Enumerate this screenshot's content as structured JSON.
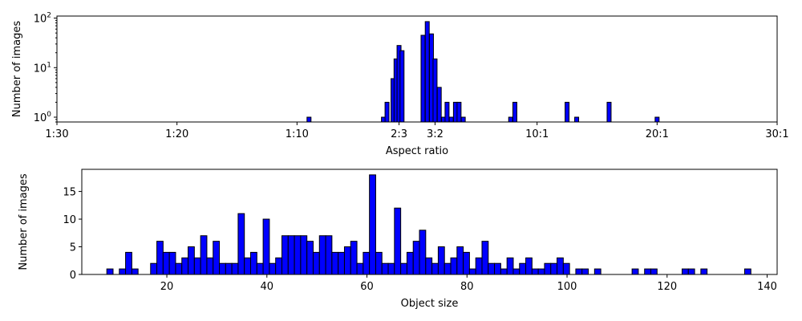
{
  "chart_data": [
    {
      "type": "bar",
      "scale": "log",
      "xlabel": "Aspect ratio",
      "ylabel": "Number of images",
      "x_ticks": [
        {
          "value": -30,
          "label": "1:30"
        },
        {
          "value": -20,
          "label": "1:20"
        },
        {
          "value": -10,
          "label": "1:10"
        },
        {
          "value": -1.5,
          "label": "2:3"
        },
        {
          "value": 1.5,
          "label": "3:2"
        },
        {
          "value": 10,
          "label": "10:1"
        },
        {
          "value": 20,
          "label": "20:1"
        },
        {
          "value": 30,
          "label": "30:1"
        }
      ],
      "y_ticks": [
        {
          "value": 1,
          "base": "10",
          "exp": "0"
        },
        {
          "value": 10,
          "base": "10",
          "exp": "1"
        },
        {
          "value": 100,
          "base": "10",
          "exp": "2"
        }
      ],
      "xlim": [
        -30,
        30
      ],
      "ylim": [
        0.8,
        110
      ],
      "bin_width": 0.333,
      "bars": [
        {
          "x": -9.0,
          "y": 1
        },
        {
          "x": -2.8,
          "y": 1
        },
        {
          "x": -2.5,
          "y": 2
        },
        {
          "x": -2.0,
          "y": 6
        },
        {
          "x": -1.75,
          "y": 15
        },
        {
          "x": -1.5,
          "y": 28
        },
        {
          "x": -1.25,
          "y": 22
        },
        {
          "x": 0.5,
          "y": 45
        },
        {
          "x": 0.85,
          "y": 85
        },
        {
          "x": 1.2,
          "y": 48
        },
        {
          "x": 1.5,
          "y": 15
        },
        {
          "x": 1.85,
          "y": 4
        },
        {
          "x": 2.2,
          "y": 1
        },
        {
          "x": 2.5,
          "y": 2
        },
        {
          "x": 2.85,
          "y": 1
        },
        {
          "x": 3.2,
          "y": 2
        },
        {
          "x": 3.5,
          "y": 2
        },
        {
          "x": 3.85,
          "y": 1
        },
        {
          "x": 7.8,
          "y": 1
        },
        {
          "x": 8.15,
          "y": 2
        },
        {
          "x": 12.5,
          "y": 2
        },
        {
          "x": 13.3,
          "y": 1
        },
        {
          "x": 16.0,
          "y": 2
        },
        {
          "x": 20.0,
          "y": 1
        }
      ]
    },
    {
      "type": "bar",
      "xlabel": "Object size",
      "ylabel": "Number of images",
      "x_ticks": [
        20,
        40,
        60,
        80,
        100,
        120,
        140
      ],
      "y_ticks": [
        0,
        5,
        10,
        15
      ],
      "xlim": [
        3,
        142
      ],
      "ylim": [
        0,
        19
      ],
      "bin_start": 8,
      "bin_width": 1.25,
      "values": [
        1,
        0,
        1,
        4,
        1,
        0,
        0,
        2,
        6,
        4,
        4,
        2,
        3,
        5,
        3,
        7,
        3,
        6,
        2,
        2,
        2,
        11,
        3,
        4,
        2,
        10,
        2,
        3,
        7,
        7,
        7,
        7,
        6,
        4,
        7,
        7,
        4,
        4,
        5,
        6,
        2,
        4,
        18,
        4,
        2,
        2,
        12,
        2,
        4,
        6,
        8,
        3,
        2,
        5,
        2,
        3,
        5,
        4,
        1,
        3,
        6,
        2,
        2,
        1,
        3,
        1,
        2,
        3,
        1,
        1,
        2,
        2,
        3,
        2,
        0,
        1,
        1,
        0,
        1,
        0,
        0,
        0,
        0,
        0,
        1,
        0,
        1,
        1,
        0,
        0,
        0,
        0,
        1,
        1,
        0,
        1,
        0,
        0,
        0,
        0,
        0,
        0,
        1
      ]
    }
  ],
  "colors": {
    "bar_fill": "#0000ff",
    "bar_edge": "#000000"
  }
}
